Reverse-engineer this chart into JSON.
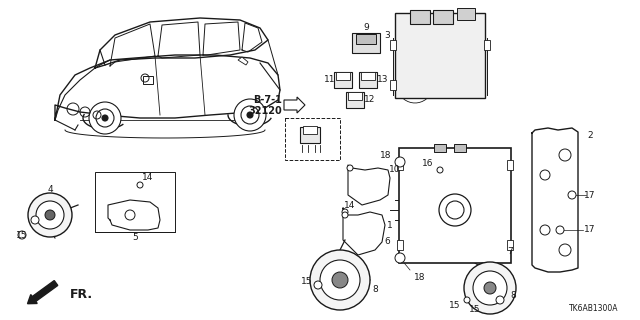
{
  "background_color": "#ffffff",
  "line_color": "#1a1a1a",
  "figsize": [
    6.4,
    3.2
  ],
  "dpi": 100,
  "diagram_ref": "TK6AB1300A",
  "b71_label": "B-7-1\n32120"
}
